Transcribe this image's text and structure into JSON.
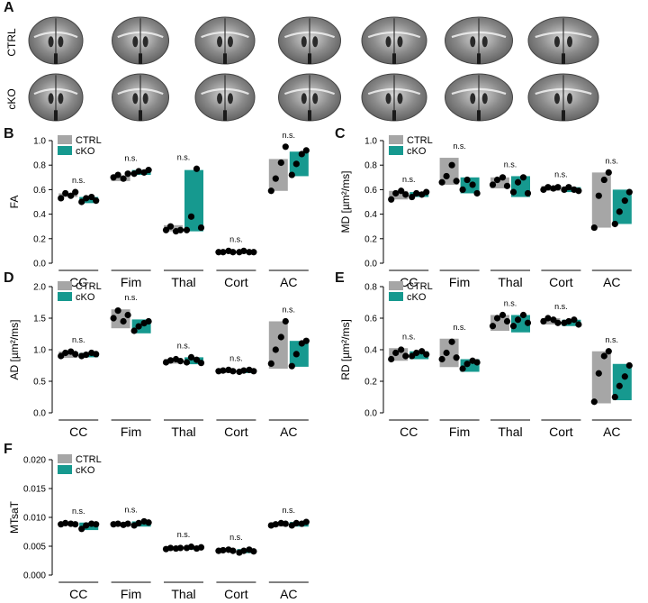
{
  "figure": {
    "panels": [
      "A",
      "B",
      "C",
      "D",
      "E",
      "F"
    ],
    "row_labels": [
      "CTRL",
      "cKO"
    ]
  },
  "colors": {
    "ctrl": "#a6a6a6",
    "cko": "#16998f",
    "dot": "#000000"
  },
  "chart_data": [
    {
      "type": "bar",
      "panel": "B",
      "ylabel": "FA",
      "ylim": [
        0,
        1.0
      ],
      "yticks": [
        "0.0",
        "0.2",
        "0.4",
        "0.6",
        "0.8",
        "1.0"
      ],
      "categories": [
        "CC",
        "Fim",
        "Thal",
        "Cort",
        "AC"
      ],
      "significance": [
        "n.s.",
        "n.s.",
        "n.s.",
        "n.s.",
        "n.s."
      ],
      "legend": [
        "CTRL",
        "cKO"
      ],
      "series": [
        {
          "name": "CTRL",
          "values": [
            0.57,
            0.71,
            0.31,
            0.1,
            0.85
          ],
          "bar_low": [
            0.54,
            0.67,
            0.26,
            0.08,
            0.59
          ],
          "points": [
            [
              0.53,
              0.57,
              0.55,
              0.58
            ],
            [
              0.7,
              0.72,
              0.69,
              0.73
            ],
            [
              0.27,
              0.3,
              0.26,
              0.27
            ],
            [
              0.09,
              0.09,
              0.1,
              0.09
            ],
            [
              0.59,
              0.69,
              0.82,
              0.95
            ]
          ]
        },
        {
          "name": "cKO",
          "values": [
            0.54,
            0.76,
            0.76,
            0.1,
            0.91
          ],
          "bar_low": [
            0.49,
            0.72,
            0.26,
            0.08,
            0.71
          ],
          "points": [
            [
              0.5,
              0.53,
              0.54,
              0.51
            ],
            [
              0.73,
              0.75,
              0.74,
              0.76
            ],
            [
              0.27,
              0.38,
              0.77,
              0.29
            ],
            [
              0.09,
              0.1,
              0.09,
              0.09
            ],
            [
              0.72,
              0.81,
              0.89,
              0.92
            ]
          ]
        }
      ]
    },
    {
      "type": "bar",
      "panel": "C",
      "ylabel": "MD [µm²/ms]",
      "ylim": [
        0,
        1.0
      ],
      "yticks": [
        "0.0",
        "0.2",
        "0.4",
        "0.6",
        "0.8",
        "1.0"
      ],
      "categories": [
        "CC",
        "Fim",
        "Thal",
        "Cort",
        "AC"
      ],
      "significance": [
        "n.s.",
        "n.s.",
        "n.s.",
        "n.s.",
        "n.s."
      ],
      "legend": [
        "CTRL",
        "cKO"
      ],
      "series": [
        {
          "name": "CTRL",
          "values": [
            0.59,
            0.86,
            0.7,
            0.63,
            0.74
          ],
          "bar_low": [
            0.52,
            0.64,
            0.61,
            0.59,
            0.29
          ],
          "points": [
            [
              0.52,
              0.57,
              0.59,
              0.56
            ],
            [
              0.66,
              0.71,
              0.8,
              0.67
            ],
            [
              0.64,
              0.68,
              0.7,
              0.63
            ],
            [
              0.6,
              0.62,
              0.61,
              0.62
            ],
            [
              0.29,
              0.55,
              0.68,
              0.74
            ]
          ]
        },
        {
          "name": "cKO",
          "values": [
            0.58,
            0.7,
            0.71,
            0.62,
            0.6
          ],
          "bar_low": [
            0.54,
            0.57,
            0.54,
            0.58,
            0.32
          ],
          "points": [
            [
              0.54,
              0.57,
              0.56,
              0.58
            ],
            [
              0.6,
              0.68,
              0.64,
              0.57
            ],
            [
              0.58,
              0.66,
              0.7,
              0.57
            ],
            [
              0.6,
              0.62,
              0.6,
              0.59
            ],
            [
              0.32,
              0.42,
              0.51,
              0.58
            ]
          ]
        }
      ]
    },
    {
      "type": "bar",
      "panel": "D",
      "ylabel": "AD [µm²/ms]",
      "ylim": [
        0,
        2.0
      ],
      "yticks": [
        "0.0",
        "0.5",
        "1.0",
        "1.5",
        "2.0"
      ],
      "categories": [
        "CC",
        "Fim",
        "Thal",
        "Cort",
        "AC"
      ],
      "significance": [
        "n.s.",
        "n.s.",
        "n.s.",
        "n.s.",
        "n.s."
      ],
      "legend": [
        "CTRL",
        "cKO"
      ],
      "series": [
        {
          "name": "CTRL",
          "values": [
            0.97,
            1.64,
            0.85,
            0.68,
            1.45
          ],
          "bar_low": [
            0.87,
            1.34,
            0.78,
            0.63,
            0.7
          ],
          "points": [
            [
              0.9,
              0.95,
              0.97,
              0.93
            ],
            [
              1.5,
              1.62,
              1.45,
              1.55
            ],
            [
              0.8,
              0.83,
              0.85,
              0.82
            ],
            [
              0.66,
              0.67,
              0.68,
              0.66
            ],
            [
              0.78,
              1.0,
              1.2,
              1.45
            ]
          ]
        },
        {
          "name": "cKO",
          "values": [
            0.95,
            1.48,
            0.88,
            0.68,
            1.14
          ],
          "bar_low": [
            0.88,
            1.26,
            0.77,
            0.63,
            0.73
          ],
          "points": [
            [
              0.9,
              0.92,
              0.95,
              0.93
            ],
            [
              1.3,
              1.37,
              1.42,
              1.45
            ],
            [
              0.8,
              0.88,
              0.84,
              0.79
            ],
            [
              0.65,
              0.67,
              0.68,
              0.66
            ],
            [
              0.74,
              0.93,
              1.1,
              1.14
            ]
          ]
        }
      ]
    },
    {
      "type": "bar",
      "panel": "E",
      "ylabel": "RD [µm²/ms]",
      "ylim": [
        0,
        0.8
      ],
      "yticks": [
        "0.0",
        "0.2",
        "0.4",
        "0.6",
        "0.8"
      ],
      "categories": [
        "CC",
        "Fim",
        "Thal",
        "Cort",
        "AC"
      ],
      "significance": [
        "n.s.",
        "n.s.",
        "n.s.",
        "n.s.",
        "n.s."
      ],
      "legend": [
        "CTRL",
        "cKO"
      ],
      "series": [
        {
          "name": "CTRL",
          "values": [
            0.41,
            0.47,
            0.62,
            0.6,
            0.39
          ],
          "bar_low": [
            0.33,
            0.29,
            0.52,
            0.56,
            0.06
          ],
          "points": [
            [
              0.34,
              0.38,
              0.4,
              0.36
            ],
            [
              0.34,
              0.38,
              0.45,
              0.35
            ],
            [
              0.55,
              0.6,
              0.62,
              0.58
            ],
            [
              0.58,
              0.6,
              0.59,
              0.57
            ],
            [
              0.07,
              0.25,
              0.36,
              0.39
            ]
          ]
        },
        {
          "name": "cKO",
          "values": [
            0.39,
            0.34,
            0.62,
            0.59,
            0.31
          ],
          "bar_low": [
            0.34,
            0.26,
            0.51,
            0.55,
            0.08
          ],
          "points": [
            [
              0.36,
              0.38,
              0.39,
              0.37
            ],
            [
              0.28,
              0.31,
              0.33,
              0.32
            ],
            [
              0.55,
              0.59,
              0.62,
              0.57
            ],
            [
              0.57,
              0.58,
              0.59,
              0.56
            ],
            [
              0.1,
              0.17,
              0.23,
              0.3
            ]
          ]
        }
      ]
    },
    {
      "type": "bar",
      "panel": "F",
      "ylabel": "MTsaT",
      "ylim": [
        0,
        0.02
      ],
      "yticks": [
        "0.000",
        "0.005",
        "0.010",
        "0.015",
        "0.020"
      ],
      "categories": [
        "CC",
        "Fim",
        "Thal",
        "Cort",
        "AC"
      ],
      "significance": [
        "n.s.",
        "n.s.",
        "n.s.",
        "n.s.",
        "n.s."
      ],
      "legend": [
        "CTRL",
        "cKO"
      ],
      "series": [
        {
          "name": "CTRL",
          "values": [
            0.0091,
            0.0091,
            0.0048,
            0.0045,
            0.0091
          ],
          "bar_low": [
            0.0086,
            0.0086,
            0.0043,
            0.004,
            0.0084
          ],
          "points": [
            [
              0.0088,
              0.009,
              0.0089,
              0.0088
            ],
            [
              0.0088,
              0.0089,
              0.0087,
              0.0089
            ],
            [
              0.0045,
              0.0047,
              0.0046,
              0.0047
            ],
            [
              0.0042,
              0.0043,
              0.0044,
              0.0042
            ],
            [
              0.0086,
              0.0088,
              0.009,
              0.0089
            ]
          ]
        },
        {
          "name": "cKO",
          "values": [
            0.0091,
            0.0093,
            0.005,
            0.0045,
            0.0092
          ],
          "bar_low": [
            0.0078,
            0.0084,
            0.0044,
            0.0038,
            0.0084
          ],
          "points": [
            [
              0.008,
              0.0086,
              0.0089,
              0.0088
            ],
            [
              0.0086,
              0.009,
              0.0093,
              0.0091
            ],
            [
              0.0047,
              0.0049,
              0.0046,
              0.0048
            ],
            [
              0.0039,
              0.0042,
              0.0044,
              0.0041
            ],
            [
              0.0086,
              0.009,
              0.0089,
              0.0092
            ]
          ]
        }
      ]
    }
  ]
}
